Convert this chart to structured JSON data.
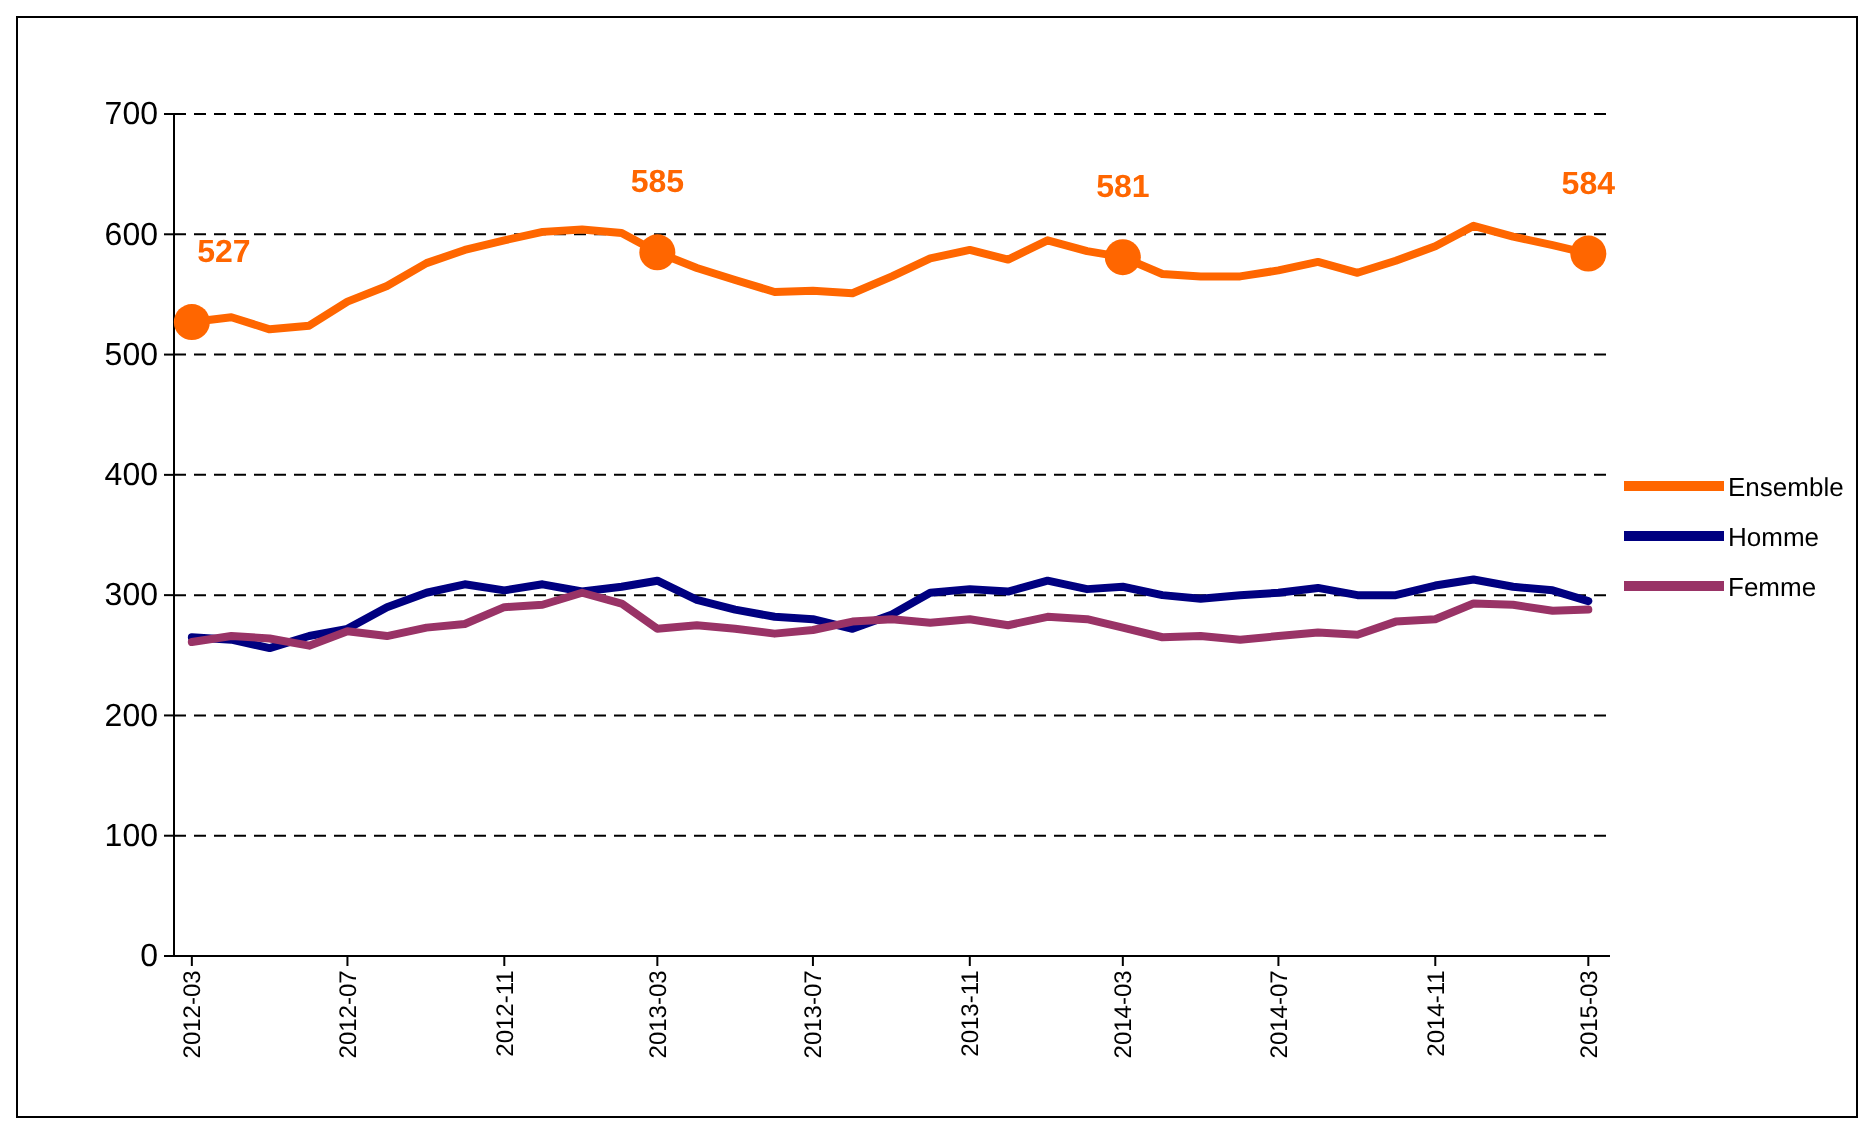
{
  "chart_data": {
    "type": "line",
    "x": [
      "2012-03",
      "2012-04",
      "2012-05",
      "2012-06",
      "2012-07",
      "2012-08",
      "2012-09",
      "2012-10",
      "2012-11",
      "2012-12",
      "2013-01",
      "2013-02",
      "2013-03",
      "2013-04",
      "2013-05",
      "2013-06",
      "2013-07",
      "2013-08",
      "2013-09",
      "2013-10",
      "2013-11",
      "2013-12",
      "2014-01",
      "2014-02",
      "2014-03",
      "2014-04",
      "2014-05",
      "2014-06",
      "2014-07",
      "2014-08",
      "2014-09",
      "2014-10",
      "2014-11",
      "2014-12",
      "2015-01",
      "2015-02",
      "2015-03"
    ],
    "series": [
      {
        "name": "Ensemble",
        "color": "#ff6600",
        "values": [
          527,
          531,
          521,
          524,
          544,
          557,
          576,
          587,
          595,
          602,
          604,
          601,
          585,
          572,
          562,
          552,
          553,
          551,
          565,
          580,
          587,
          579,
          595,
          586,
          581,
          567,
          565,
          565,
          570,
          577,
          568,
          578,
          590,
          607,
          598,
          591,
          584
        ]
      },
      {
        "type": "scatter",
        "color": "#ff6600",
        "marker": "circle",
        "x": [
          "2012-03",
          "2013-03",
          "2014-03",
          "2015-03"
        ],
        "values": [
          527,
          585,
          581,
          584
        ],
        "value_labels": [
          "527",
          "585",
          "581",
          "584"
        ]
      },
      {
        "name": "Homme",
        "color": "#000080",
        "values": [
          265,
          263,
          256,
          266,
          272,
          290,
          302,
          309,
          304,
          309,
          303,
          307,
          312,
          296,
          288,
          282,
          280,
          272,
          284,
          302,
          305,
          303,
          312,
          305,
          307,
          300,
          297,
          300,
          302,
          306,
          300,
          300,
          308,
          313,
          307,
          304,
          295
        ]
      },
      {
        "name": "Femme",
        "color": "#993366",
        "values": [
          261,
          266,
          264,
          258,
          270,
          266,
          273,
          276,
          290,
          292,
          302,
          293,
          272,
          275,
          272,
          268,
          271,
          278,
          280,
          277,
          280,
          275,
          282,
          280,
          273,
          265,
          266,
          263,
          266,
          269,
          267,
          278,
          280,
          293,
          292,
          287,
          288
        ]
      }
    ],
    "xlim": [
      "2012-02-16",
      "2015-03-18"
    ],
    "xticks": [
      "2012-03",
      "2012-07",
      "2012-11",
      "2013-03",
      "2013-07",
      "2013-11",
      "2014-03",
      "2014-07",
      "2014-11",
      "2015-03"
    ],
    "ylim": [
      0,
      700
    ],
    "yticks": [
      0,
      100,
      200,
      300,
      400,
      500,
      600,
      700
    ],
    "grid": "y",
    "legend": "right",
    "line_style": "solid"
  }
}
